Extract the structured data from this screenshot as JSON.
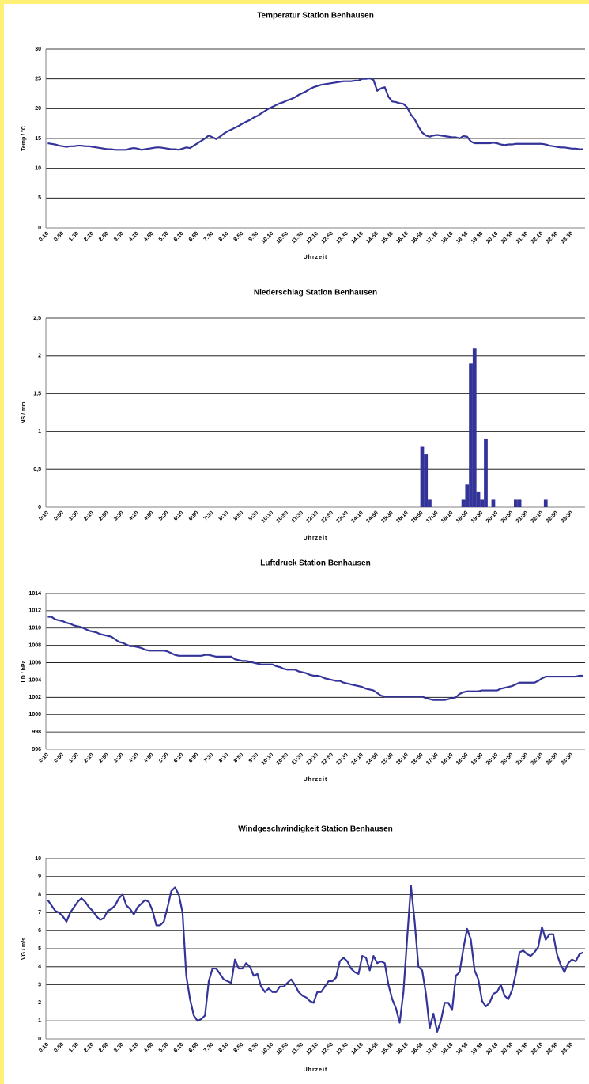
{
  "chart_data": [
    {
      "type": "line",
      "title": "Temperatur  Station Benhausen",
      "x_label": "Uhrzeit",
      "y_label": "Temp / °C",
      "color": "#333399",
      "grid": true,
      "ylim": [
        0,
        30
      ],
      "yticks": [
        0,
        5,
        10,
        15,
        20,
        25,
        30
      ],
      "categories": [
        "0:10",
        null,
        null,
        null,
        "0:50",
        null,
        null,
        null,
        "1:30",
        null,
        null,
        null,
        "2:10",
        null,
        null,
        null,
        "2:50",
        null,
        null,
        null,
        "3:30",
        null,
        null,
        null,
        "4:10",
        null,
        null,
        null,
        "4:50",
        null,
        null,
        null,
        "5:30",
        null,
        null,
        null,
        "6:10",
        null,
        null,
        null,
        "6:50",
        null,
        null,
        null,
        "7:30",
        null,
        null,
        null,
        "8:10",
        null,
        null,
        null,
        "8:50",
        null,
        null,
        null,
        "9:30",
        null,
        null,
        null,
        "10:10",
        null,
        null,
        null,
        "10:50",
        null,
        null,
        null,
        "11:30",
        null,
        null,
        null,
        "12:10",
        null,
        null,
        null,
        "12:50",
        null,
        null,
        null,
        "13:30",
        null,
        null,
        null,
        "14:10",
        null,
        null,
        null,
        "14:50",
        null,
        null,
        null,
        "15:30",
        null,
        null,
        null,
        "16:10",
        null,
        null,
        null,
        "16:50",
        null,
        null,
        null,
        "17:30",
        null,
        null,
        null,
        "18:10",
        null,
        null,
        null,
        "18:50",
        null,
        null,
        null,
        "19:30",
        null,
        null,
        null,
        "20:10",
        null,
        null,
        null,
        "20:50",
        null,
        null,
        null,
        "21:30",
        null,
        null,
        null,
        "22:10",
        null,
        null,
        null,
        "22:50",
        null,
        null,
        null,
        "23:30",
        null,
        null,
        null
      ],
      "values": [
        14.2,
        14.1,
        14.0,
        13.8,
        13.7,
        13.6,
        13.7,
        13.7,
        13.8,
        13.8,
        13.7,
        13.7,
        13.6,
        13.5,
        13.4,
        13.3,
        13.2,
        13.2,
        13.1,
        13.1,
        13.1,
        13.1,
        13.3,
        13.4,
        13.3,
        13.1,
        13.2,
        13.3,
        13.4,
        13.5,
        13.5,
        13.4,
        13.3,
        13.2,
        13.2,
        13.1,
        13.3,
        13.5,
        13.4,
        13.8,
        14.2,
        14.6,
        15.0,
        15.5,
        15.2,
        14.9,
        15.3,
        15.8,
        16.2,
        16.5,
        16.8,
        17.1,
        17.5,
        17.8,
        18.1,
        18.5,
        18.8,
        19.2,
        19.6,
        20.0,
        20.3,
        20.6,
        20.9,
        21.1,
        21.4,
        21.6,
        21.9,
        22.3,
        22.6,
        22.9,
        23.3,
        23.6,
        23.8,
        24.0,
        24.1,
        24.2,
        24.3,
        24.4,
        24.5,
        24.6,
        24.6,
        24.6,
        24.7,
        24.7,
        25.0,
        25.0,
        25.1,
        24.8,
        23.0,
        23.4,
        23.6,
        22.0,
        21.2,
        21.1,
        20.9,
        20.8,
        20.2,
        19.0,
        18.2,
        17.0,
        16.0,
        15.5,
        15.3,
        15.5,
        15.6,
        15.5,
        15.4,
        15.3,
        15.2,
        15.2,
        15.0,
        15.4,
        15.3,
        14.5,
        14.2,
        14.2,
        14.2,
        14.2,
        14.2,
        14.3,
        14.2,
        14.0,
        13.9,
        14.0,
        14.0,
        14.1,
        14.1,
        14.1,
        14.1,
        14.1,
        14.1,
        14.1,
        14.1,
        14.0,
        13.8,
        13.7,
        13.6,
        13.5,
        13.5,
        13.4,
        13.3,
        13.3,
        13.2,
        13.2
      ]
    },
    {
      "type": "bar",
      "title": "Niederschlag Station Benhausen",
      "x_label": "Uhrzeit",
      "y_label": "NS / mm",
      "color": "#333399",
      "grid": true,
      "ylim": [
        0,
        2.5
      ],
      "yticks": [
        0,
        {
          "value": 0.5,
          "label": "0,5"
        },
        1,
        {
          "value": 1.5,
          "label": "1,5"
        },
        2,
        {
          "value": 2.5,
          "label": "2,5"
        }
      ],
      "categories": [
        "0:10",
        null,
        null,
        null,
        "0:50",
        null,
        null,
        null,
        "1:30",
        null,
        null,
        null,
        "2:10",
        null,
        null,
        null,
        "2:50",
        null,
        null,
        null,
        "3:30",
        null,
        null,
        null,
        "4:10",
        null,
        null,
        null,
        "4:50",
        null,
        null,
        null,
        "5:30",
        null,
        null,
        null,
        "6:10",
        null,
        null,
        null,
        "6:50",
        null,
        null,
        null,
        "7:30",
        null,
        null,
        null,
        "8:10",
        null,
        null,
        null,
        "8:50",
        null,
        null,
        null,
        "9:30",
        null,
        null,
        null,
        "10:10",
        null,
        null,
        null,
        "10:50",
        null,
        null,
        null,
        "11:30",
        null,
        null,
        null,
        "12:10",
        null,
        null,
        null,
        "12:50",
        null,
        null,
        null,
        "13:30",
        null,
        null,
        null,
        "14:10",
        null,
        null,
        null,
        "14:50",
        null,
        null,
        null,
        "15:30",
        null,
        null,
        null,
        "16:10",
        null,
        null,
        null,
        "16:50",
        null,
        null,
        null,
        "17:30",
        null,
        null,
        null,
        "18:10",
        null,
        null,
        null,
        "18:50",
        null,
        null,
        null,
        "19:30",
        null,
        null,
        null,
        "20:10",
        null,
        null,
        null,
        "20:50",
        null,
        null,
        null,
        "21:30",
        null,
        null,
        null,
        "22:10",
        null,
        null,
        null,
        "22:50",
        null,
        null,
        null,
        "23:30",
        null,
        null,
        null
      ],
      "values": [
        0,
        0,
        0,
        0,
        0,
        0,
        0,
        0,
        0,
        0,
        0,
        0,
        0,
        0,
        0,
        0,
        0,
        0,
        0,
        0,
        0,
        0,
        0,
        0,
        0,
        0,
        0,
        0,
        0,
        0,
        0,
        0,
        0,
        0,
        0,
        0,
        0,
        0,
        0,
        0,
        0,
        0,
        0,
        0,
        0,
        0,
        0,
        0,
        0,
        0,
        0,
        0,
        0,
        0,
        0,
        0,
        0,
        0,
        0,
        0,
        0,
        0,
        0,
        0,
        0,
        0,
        0,
        0,
        0,
        0,
        0,
        0,
        0,
        0,
        0,
        0,
        0,
        0,
        0,
        0,
        0,
        0,
        0,
        0,
        0,
        0,
        0,
        0,
        0,
        0,
        0,
        0,
        0,
        0,
        0,
        0,
        0,
        0,
        0,
        0,
        0.8,
        0.7,
        0.1,
        0,
        0,
        0,
        0,
        0,
        0,
        0,
        0,
        0.1,
        0.3,
        1.9,
        2.1,
        0.2,
        0.1,
        0.9,
        0,
        0.1,
        0,
        0,
        0,
        0,
        0,
        0.1,
        0.1,
        0,
        0,
        0,
        0,
        0,
        0,
        0.1,
        0,
        0,
        0,
        0,
        0,
        0,
        0,
        0,
        0,
        0
      ]
    },
    {
      "type": "line",
      "title": "Luftdruck Station Benhausen",
      "x_label": "Uhrzeit",
      "y_label": "LD / hPa",
      "color": "#333399",
      "grid": true,
      "ylim": [
        996,
        1014
      ],
      "yticks": [
        996,
        998,
        1000,
        1002,
        1004,
        1006,
        1008,
        1010,
        1012,
        1014
      ],
      "categories": [
        "0:10",
        null,
        null,
        null,
        "0:50",
        null,
        null,
        null,
        "1:30",
        null,
        null,
        null,
        "2:10",
        null,
        null,
        null,
        "2:50",
        null,
        null,
        null,
        "3:30",
        null,
        null,
        null,
        "4:10",
        null,
        null,
        null,
        "4:50",
        null,
        null,
        null,
        "5:30",
        null,
        null,
        null,
        "6:10",
        null,
        null,
        null,
        "6:50",
        null,
        null,
        null,
        "7:30",
        null,
        null,
        null,
        "8:10",
        null,
        null,
        null,
        "8:50",
        null,
        null,
        null,
        "9:30",
        null,
        null,
        null,
        "10:10",
        null,
        null,
        null,
        "10:50",
        null,
        null,
        null,
        "11:30",
        null,
        null,
        null,
        "12:10",
        null,
        null,
        null,
        "12:50",
        null,
        null,
        null,
        "13:30",
        null,
        null,
        null,
        "14:10",
        null,
        null,
        null,
        "14:50",
        null,
        null,
        null,
        "15:30",
        null,
        null,
        null,
        "16:10",
        null,
        null,
        null,
        "16:50",
        null,
        null,
        null,
        "17:30",
        null,
        null,
        null,
        "18:10",
        null,
        null,
        null,
        "18:50",
        null,
        null,
        null,
        "19:30",
        null,
        null,
        null,
        "20:10",
        null,
        null,
        null,
        "20:50",
        null,
        null,
        null,
        "21:30",
        null,
        null,
        null,
        "22:10",
        null,
        null,
        null,
        "22:50",
        null,
        null,
        null,
        "23:30",
        null,
        null,
        null
      ],
      "values": [
        1011.3,
        1011.3,
        1011.0,
        1010.9,
        1010.8,
        1010.6,
        1010.5,
        1010.3,
        1010.2,
        1010.1,
        1009.9,
        1009.7,
        1009.6,
        1009.5,
        1009.3,
        1009.2,
        1009.1,
        1009.0,
        1008.7,
        1008.4,
        1008.3,
        1008.1,
        1007.9,
        1007.9,
        1007.8,
        1007.7,
        1007.5,
        1007.4,
        1007.4,
        1007.4,
        1007.4,
        1007.4,
        1007.3,
        1007.1,
        1006.9,
        1006.8,
        1006.8,
        1006.8,
        1006.8,
        1006.8,
        1006.8,
        1006.8,
        1006.9,
        1006.9,
        1006.8,
        1006.7,
        1006.7,
        1006.7,
        1006.7,
        1006.7,
        1006.4,
        1006.3,
        1006.2,
        1006.2,
        1006.1,
        1006.0,
        1005.9,
        1005.8,
        1005.8,
        1005.8,
        1005.8,
        1005.6,
        1005.5,
        1005.3,
        1005.2,
        1005.2,
        1005.2,
        1005.0,
        1004.9,
        1004.8,
        1004.6,
        1004.5,
        1004.5,
        1004.4,
        1004.2,
        1004.1,
        1004.0,
        1003.9,
        1003.9,
        1003.7,
        1003.6,
        1003.5,
        1003.4,
        1003.3,
        1003.2,
        1003.0,
        1002.9,
        1002.8,
        1002.5,
        1002.2,
        1002.1,
        1002.1,
        1002.1,
        1002.1,
        1002.1,
        1002.1,
        1002.1,
        1002.1,
        1002.1,
        1002.1,
        1002.1,
        1001.9,
        1001.8,
        1001.7,
        1001.7,
        1001.7,
        1001.7,
        1001.8,
        1001.9,
        1002.0,
        1002.4,
        1002.6,
        1002.7,
        1002.7,
        1002.7,
        1002.7,
        1002.8,
        1002.8,
        1002.8,
        1002.8,
        1002.8,
        1003.0,
        1003.1,
        1003.2,
        1003.3,
        1003.5,
        1003.7,
        1003.7,
        1003.7,
        1003.7,
        1003.7,
        1003.9,
        1004.2,
        1004.4,
        1004.4,
        1004.4,
        1004.4,
        1004.4,
        1004.4,
        1004.4,
        1004.4,
        1004.4,
        1004.5,
        1004.5
      ]
    },
    {
      "type": "line",
      "title": "Windgeschwindigkeit Station Benhausen",
      "x_label": "Uhrzeit",
      "y_label": "VG / m/s",
      "color": "#333399",
      "grid": true,
      "ylim": [
        0,
        10
      ],
      "yticks": [
        0,
        1,
        2,
        3,
        4,
        5,
        6,
        7,
        8,
        9,
        10
      ],
      "categories": [
        "0:10",
        null,
        null,
        null,
        "0:50",
        null,
        null,
        null,
        "1:30",
        null,
        null,
        null,
        "2:10",
        null,
        null,
        null,
        "2:50",
        null,
        null,
        null,
        "3:30",
        null,
        null,
        null,
        "4:10",
        null,
        null,
        null,
        "4:50",
        null,
        null,
        null,
        "5:30",
        null,
        null,
        null,
        "6:10",
        null,
        null,
        null,
        "6:50",
        null,
        null,
        null,
        "7:30",
        null,
        null,
        null,
        "8:10",
        null,
        null,
        null,
        "8:50",
        null,
        null,
        null,
        "9:30",
        null,
        null,
        null,
        "10:10",
        null,
        null,
        null,
        "10:50",
        null,
        null,
        null,
        "11:30",
        null,
        null,
        null,
        "12:10",
        null,
        null,
        null,
        "12:50",
        null,
        null,
        null,
        "13:30",
        null,
        null,
        null,
        "14:10",
        null,
        null,
        null,
        "14:50",
        null,
        null,
        null,
        "15:30",
        null,
        null,
        null,
        "16:10",
        null,
        null,
        null,
        "16:50",
        null,
        null,
        null,
        "17:30",
        null,
        null,
        null,
        "18:10",
        null,
        null,
        null,
        "18:50",
        null,
        null,
        null,
        "19:30",
        null,
        null,
        null,
        "20:10",
        null,
        null,
        null,
        "20:50",
        null,
        null,
        null,
        "21:30",
        null,
        null,
        null,
        "22:10",
        null,
        null,
        null,
        "22:50",
        null,
        null,
        null,
        "23:30",
        null,
        null,
        null
      ],
      "values": [
        7.7,
        7.4,
        7.1,
        7.0,
        6.8,
        6.5,
        7.0,
        7.3,
        7.6,
        7.8,
        7.6,
        7.3,
        7.1,
        6.8,
        6.6,
        6.7,
        7.1,
        7.2,
        7.4,
        7.8,
        8.0,
        7.4,
        7.2,
        6.9,
        7.3,
        7.5,
        7.7,
        7.6,
        7.1,
        6.3,
        6.3,
        6.5,
        7.3,
        8.2,
        8.4,
        8.0,
        7.0,
        3.5,
        2.2,
        1.3,
        1.0,
        1.1,
        1.3,
        3.2,
        3.9,
        3.9,
        3.6,
        3.3,
        3.2,
        3.1,
        4.4,
        3.9,
        3.9,
        4.2,
        4.0,
        3.5,
        3.6,
        2.9,
        2.6,
        2.8,
        2.6,
        2.6,
        2.9,
        2.9,
        3.1,
        3.3,
        3.0,
        2.6,
        2.4,
        2.3,
        2.1,
        2.0,
        2.6,
        2.6,
        2.9,
        3.2,
        3.2,
        3.4,
        4.3,
        4.5,
        4.3,
        3.9,
        3.7,
        3.6,
        4.6,
        4.5,
        3.8,
        4.6,
        4.2,
        4.3,
        4.2,
        3.0,
        2.2,
        1.7,
        0.9,
        2.6,
        5.6,
        8.5,
        6.5,
        4.0,
        3.8,
        2.5,
        0.6,
        1.4,
        0.4,
        1.0,
        2.0,
        2.0,
        1.6,
        3.5,
        3.7,
        5.0,
        6.1,
        5.5,
        3.8,
        3.3,
        2.1,
        1.8,
        2.0,
        2.5,
        2.6,
        3.0,
        2.4,
        2.2,
        2.7,
        3.6,
        4.8,
        4.9,
        4.7,
        4.6,
        4.8,
        5.1,
        6.2,
        5.5,
        5.8,
        5.8,
        4.7,
        4.1,
        3.7,
        4.2,
        4.4,
        4.3,
        4.7,
        4.8
      ]
    }
  ]
}
